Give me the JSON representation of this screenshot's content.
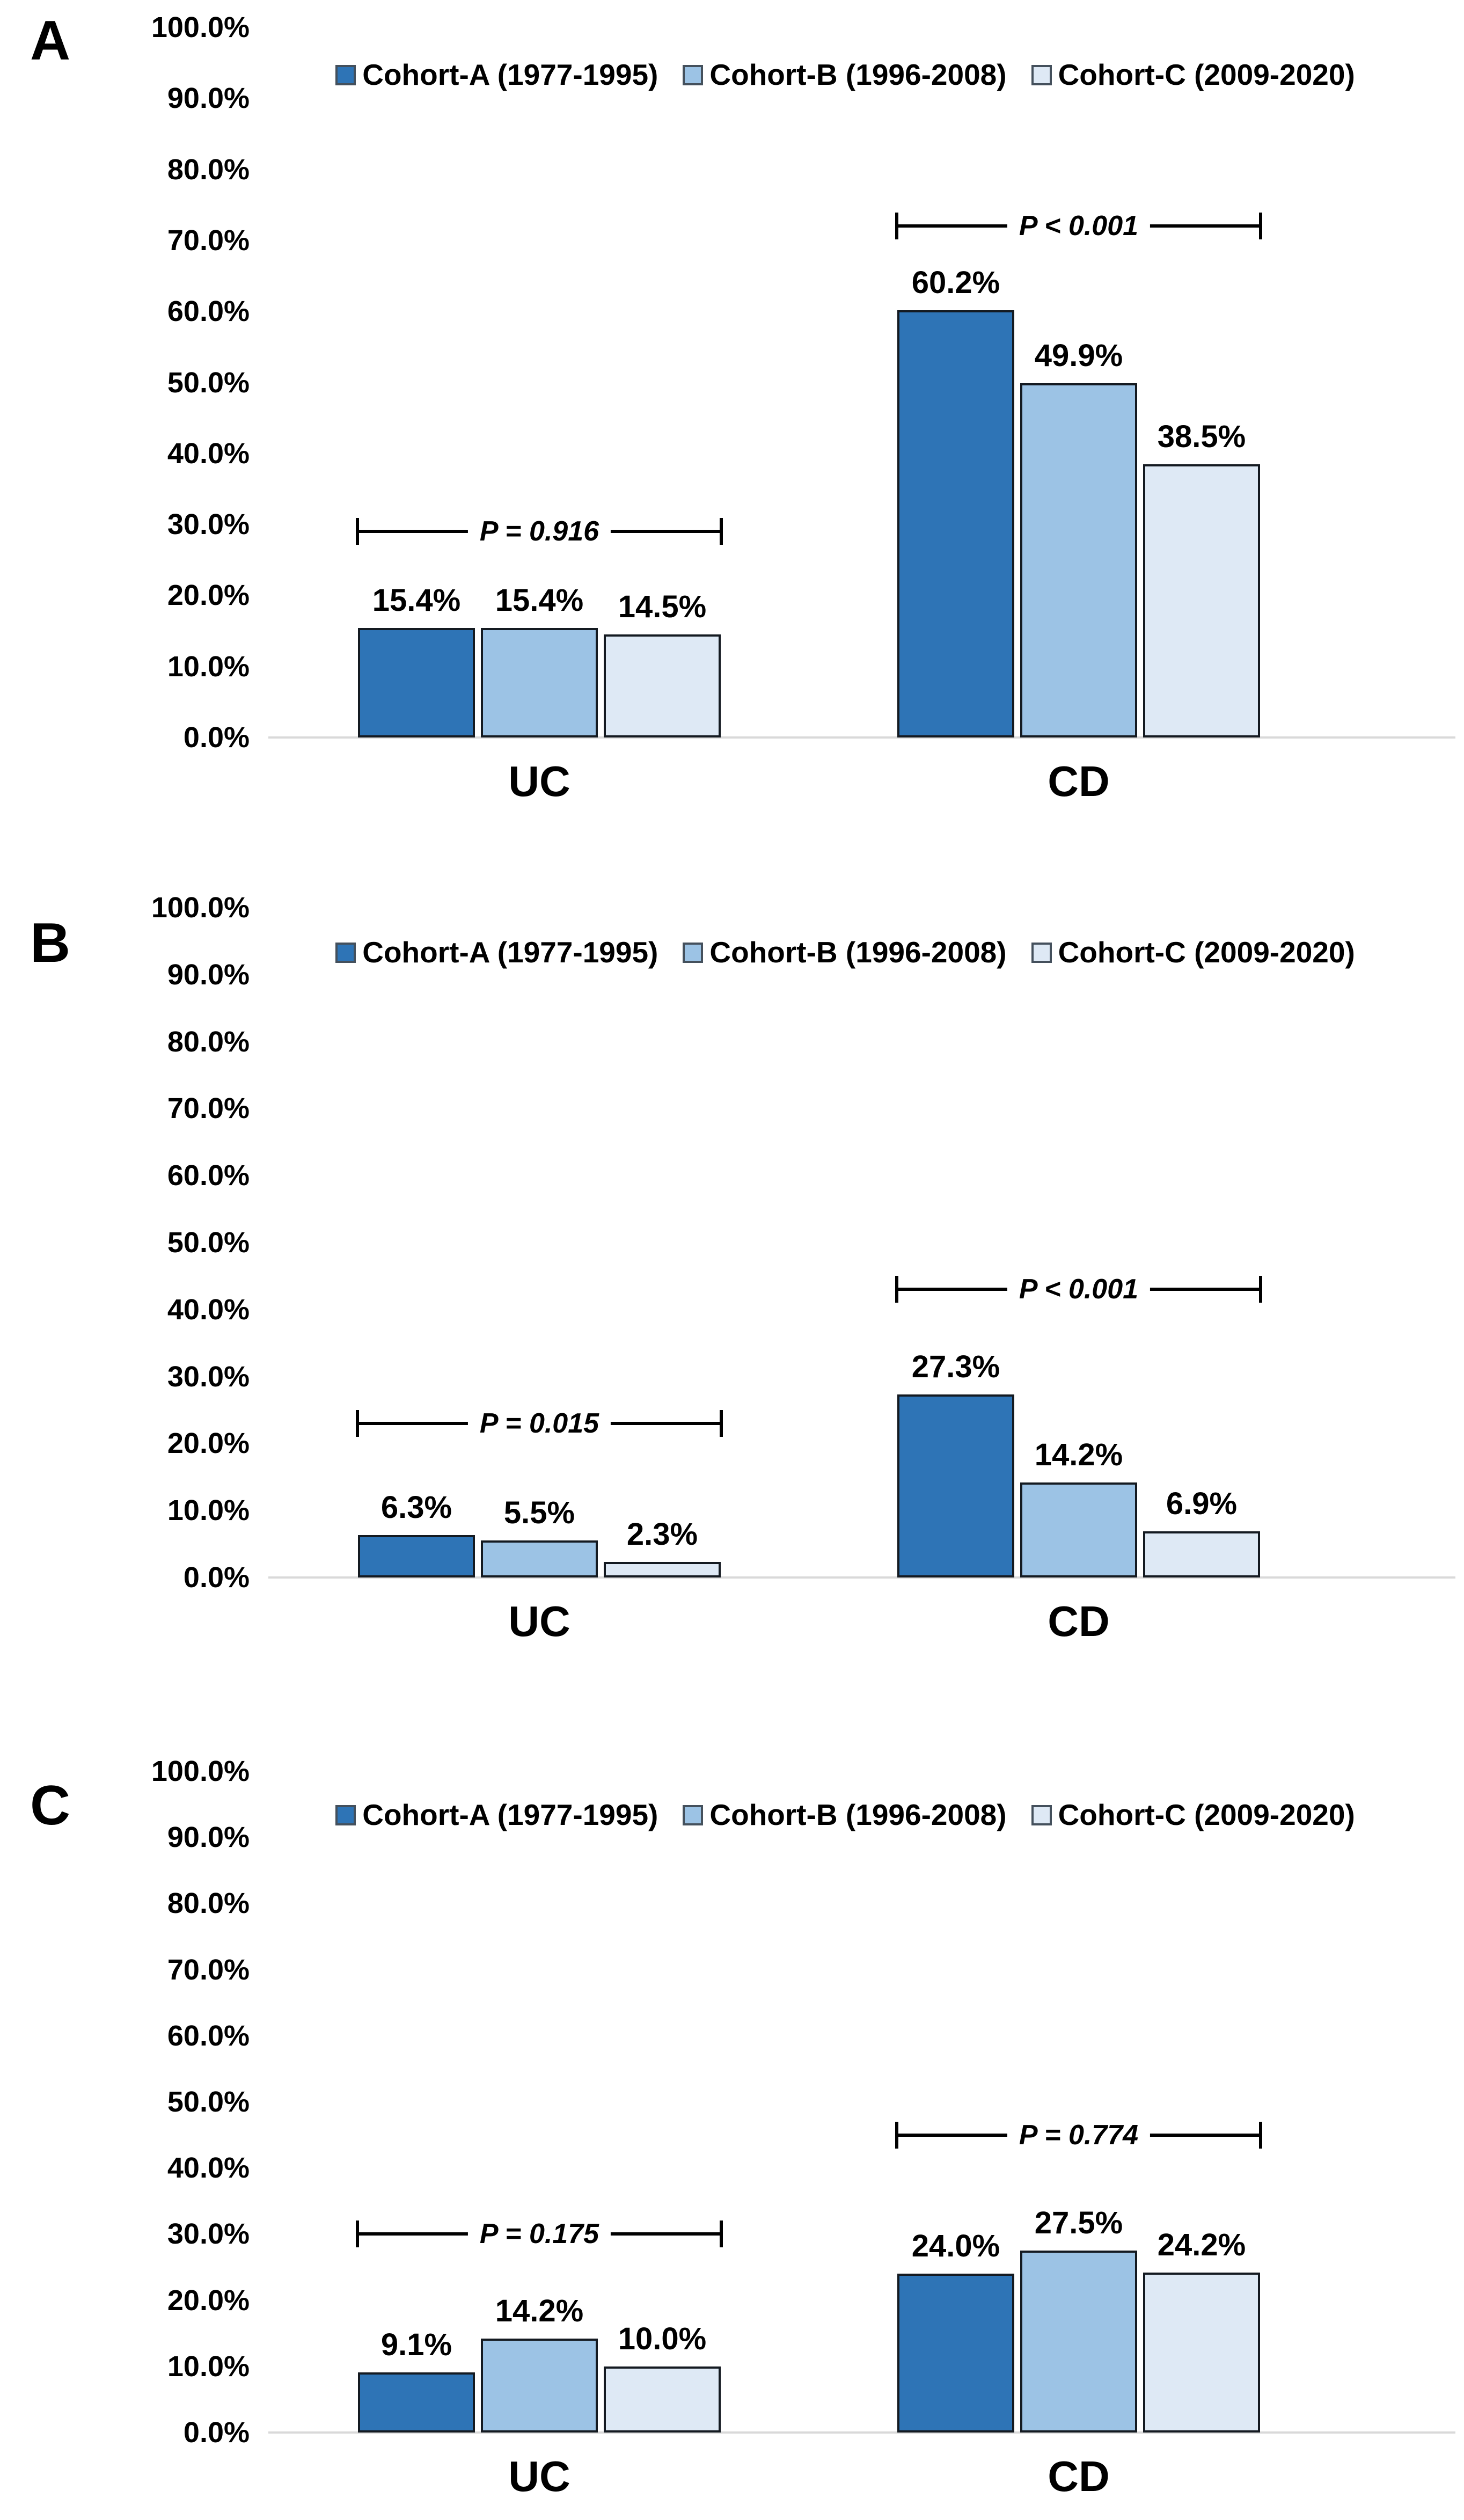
{
  "figure": {
    "background": "#ffffff",
    "description_title": ""
  },
  "colors": {
    "cohort_a_fill": "#2E74B6",
    "cohort_b_fill": "#9CC3E5",
    "cohort_c_fill": "#DEE9F5",
    "bar_border": "#141a21",
    "baseline": "#D9D9D9",
    "bracket": "#000000",
    "text": "#000000"
  },
  "legend": {
    "position": "top-inside",
    "items": [
      {
        "label": "Cohort-A (1977-1995)",
        "color": "#2E74B6"
      },
      {
        "label": "Cohort-B (1996-2008)",
        "color": "#9CC3E5"
      },
      {
        "label": "Cohort-C (2009-2020)",
        "color": "#DEE9F5"
      }
    ]
  },
  "y_axis": {
    "min": 0,
    "max": 100,
    "tick_labels": [
      "100.0%",
      "90.0%",
      "80.0%",
      "70.0%",
      "60.0%",
      "50.0%",
      "40.0%",
      "30.0%",
      "20.0%",
      "10.0%",
      "0.0%"
    ],
    "gridlines": false
  },
  "chart_data": [
    {
      "panel_label": "A",
      "type": "bar",
      "categories": [
        "UC",
        "CD"
      ],
      "ylim": [
        0,
        100
      ],
      "series": [
        {
          "name": "Cohort-A (1977-1995)",
          "values": [
            15.4,
            60.2
          ],
          "value_labels": [
            "15.4%",
            "60.2%"
          ]
        },
        {
          "name": "Cohort-B (1996-2008)",
          "values": [
            15.4,
            49.9
          ],
          "value_labels": [
            "15.4%",
            "49.9%"
          ]
        },
        {
          "name": "Cohort-C (2009-2020)",
          "values": [
            14.5,
            38.5
          ],
          "value_labels": [
            "14.5%",
            "38.5%"
          ]
        }
      ],
      "p_brackets": [
        {
          "category": "UC",
          "text": "P = 0.916",
          "height_pct": 29
        },
        {
          "category": "CD",
          "text": "P < 0.001",
          "height_pct": 72
        }
      ]
    },
    {
      "panel_label": "B",
      "type": "bar",
      "categories": [
        "UC",
        "CD"
      ],
      "ylim": [
        0,
        100
      ],
      "series": [
        {
          "name": "Cohort-A (1977-1995)",
          "values": [
            6.3,
            27.3
          ],
          "value_labels": [
            "6.3%",
            "27.3%"
          ]
        },
        {
          "name": "Cohort-B (1996-2008)",
          "values": [
            5.5,
            14.2
          ],
          "value_labels": [
            "5.5%",
            "14.2%"
          ]
        },
        {
          "name": "Cohort-C (2009-2020)",
          "values": [
            2.3,
            6.9
          ],
          "value_labels": [
            "2.3%",
            "6.9%"
          ]
        }
      ],
      "p_brackets": [
        {
          "category": "UC",
          "text": "P = 0.015",
          "height_pct": 23
        },
        {
          "category": "CD",
          "text": "P < 0.001",
          "height_pct": 43
        }
      ]
    },
    {
      "panel_label": "C",
      "type": "bar",
      "categories": [
        "UC",
        "CD"
      ],
      "ylim": [
        0,
        100
      ],
      "series": [
        {
          "name": "Cohort-A (1977-1995)",
          "values": [
            9.1,
            24.0
          ],
          "value_labels": [
            "9.1%",
            "24.0%"
          ]
        },
        {
          "name": "Cohort-B (1996-2008)",
          "values": [
            14.2,
            27.5
          ],
          "value_labels": [
            "14.2%",
            "27.5%"
          ]
        },
        {
          "name": "Cohort-C (2009-2020)",
          "values": [
            10.0,
            24.2
          ],
          "value_labels": [
            "10.0%",
            "24.2%"
          ]
        }
      ],
      "p_brackets": [
        {
          "category": "UC",
          "text": "P = 0.175",
          "height_pct": 30
        },
        {
          "category": "CD",
          "text": "P = 0.774",
          "height_pct": 45
        }
      ]
    }
  ]
}
